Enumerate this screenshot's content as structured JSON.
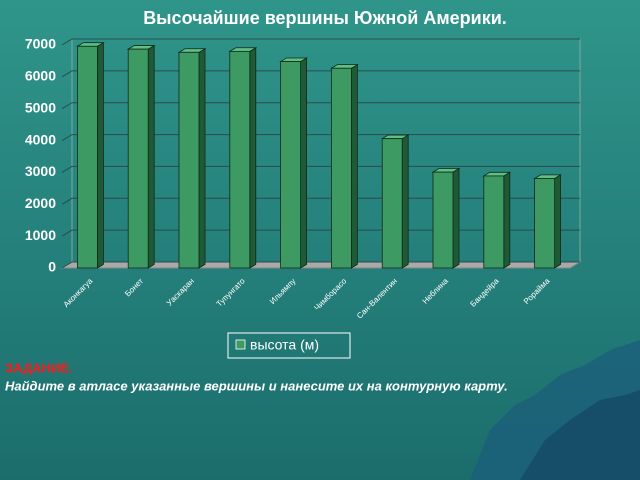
{
  "chart_data": {
    "type": "bar3d",
    "title": "Высочайшие вершины Южной Америки.",
    "categories": [
      "Аконкагуа",
      "Бонет",
      "Уаскаран",
      "Тупунгато",
      "Ильямпу",
      "Чимборасо",
      "Сан-Валентин",
      "Неблина",
      "Бандейра",
      "Рорайма"
    ],
    "series": [
      {
        "name": "высота (м)",
        "color": "#3c9a62",
        "values": [
          6960,
          6870,
          6770,
          6800,
          6480,
          6270,
          4060,
          3010,
          2890,
          2810
        ]
      }
    ],
    "ylim": [
      0,
      7000
    ],
    "yticks": [
      0,
      1000,
      2000,
      3000,
      4000,
      5000,
      6000,
      7000
    ],
    "grid": true
  },
  "task": {
    "heading": "ЗАДАНИЕ.",
    "text": "Найдите в атласе указанные вершины и нанесите их на контурную карту."
  }
}
